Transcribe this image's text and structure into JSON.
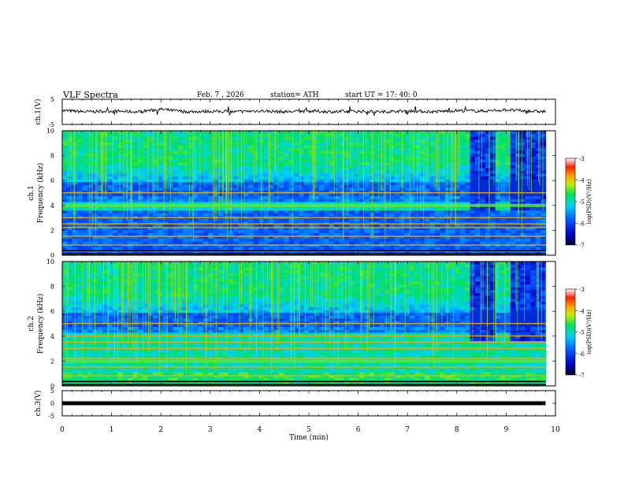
{
  "header": {
    "title": "VLF  Spectra",
    "date": "Feb. 7  , 2026",
    "station": "station= ATH",
    "start": "start  UT  =    17: 40: 0"
  },
  "chart_data": [
    {
      "type": "line",
      "panel": "ch1-waveform",
      "ylabel": "ch.1(V)",
      "ylim": [
        -5,
        5
      ],
      "y_ticks": [
        "5",
        "-5"
      ],
      "xlim": [
        0,
        10
      ],
      "color": "#000000",
      "series": [
        {
          "x": [
            0,
            0.5,
            1,
            1.5,
            2,
            2.5,
            3,
            3.5,
            4,
            4.5,
            5,
            5.5,
            6,
            6.5,
            7,
            7.5,
            8,
            8.5,
            9,
            9.5,
            9.8
          ],
          "values": [
            0.5,
            0,
            0.3,
            0,
            1.0,
            0,
            0.2,
            0,
            0.4,
            0,
            0.3,
            0,
            0.2,
            0,
            0.4,
            0,
            0.5,
            0.3,
            0.8,
            0.2,
            0.1
          ]
        }
      ]
    },
    {
      "type": "heatmap",
      "panel": "ch1-spectrogram",
      "ylabel": "ch.1\nFrequency  (kHz)",
      "ylim": [
        0,
        10
      ],
      "y_ticks": [
        "0",
        "2",
        "4",
        "6",
        "8",
        "10"
      ],
      "xlim": [
        0,
        10
      ],
      "bands_khz": [
        0.3,
        0.8,
        1.5,
        2.2,
        2.5,
        3.0,
        4.0,
        5.0
      ],
      "bright_band_khz": 4.0,
      "notch_segments_min": [
        [
          8.25,
          8.75
        ],
        [
          9.1,
          9.75
        ]
      ]
    },
    {
      "type": "heatmap",
      "panel": "ch2-spectrogram",
      "ylabel": "ch.2\nFrequency  (kHz)",
      "ylim": [
        0,
        10
      ],
      "y_ticks": [
        "0",
        "2",
        "4",
        "6",
        "8",
        "10"
      ],
      "xlim": [
        0,
        10
      ],
      "bands_khz": [
        0.8,
        1.5,
        2.0,
        2.2,
        3.0,
        3.5,
        4.0,
        5.0
      ],
      "bright_band_khz": 2.0,
      "notch_segments_min": [
        [
          8.25,
          8.75
        ],
        [
          9.1,
          9.75
        ]
      ]
    },
    {
      "type": "line",
      "panel": "ch3-waveform",
      "ylabel": "ch.3(V)",
      "ylim": [
        -5,
        5
      ],
      "y_ticks": [
        "5",
        "0",
        "-5"
      ],
      "xlim": [
        0,
        10
      ],
      "color": "#000000",
      "series": [
        {
          "x": [
            0,
            9.8
          ],
          "values": [
            0,
            0
          ]
        }
      ]
    }
  ],
  "xaxis": {
    "label": "Time  (min)",
    "ticks": [
      "0",
      "1",
      "2",
      "3",
      "4",
      "5",
      "6",
      "7",
      "8",
      "9",
      "10"
    ]
  },
  "colorbar": {
    "label": "log(PSD)(V²/Hz)",
    "ticks": [
      "-3",
      "-4",
      "-5",
      "-6",
      "-7"
    ]
  }
}
